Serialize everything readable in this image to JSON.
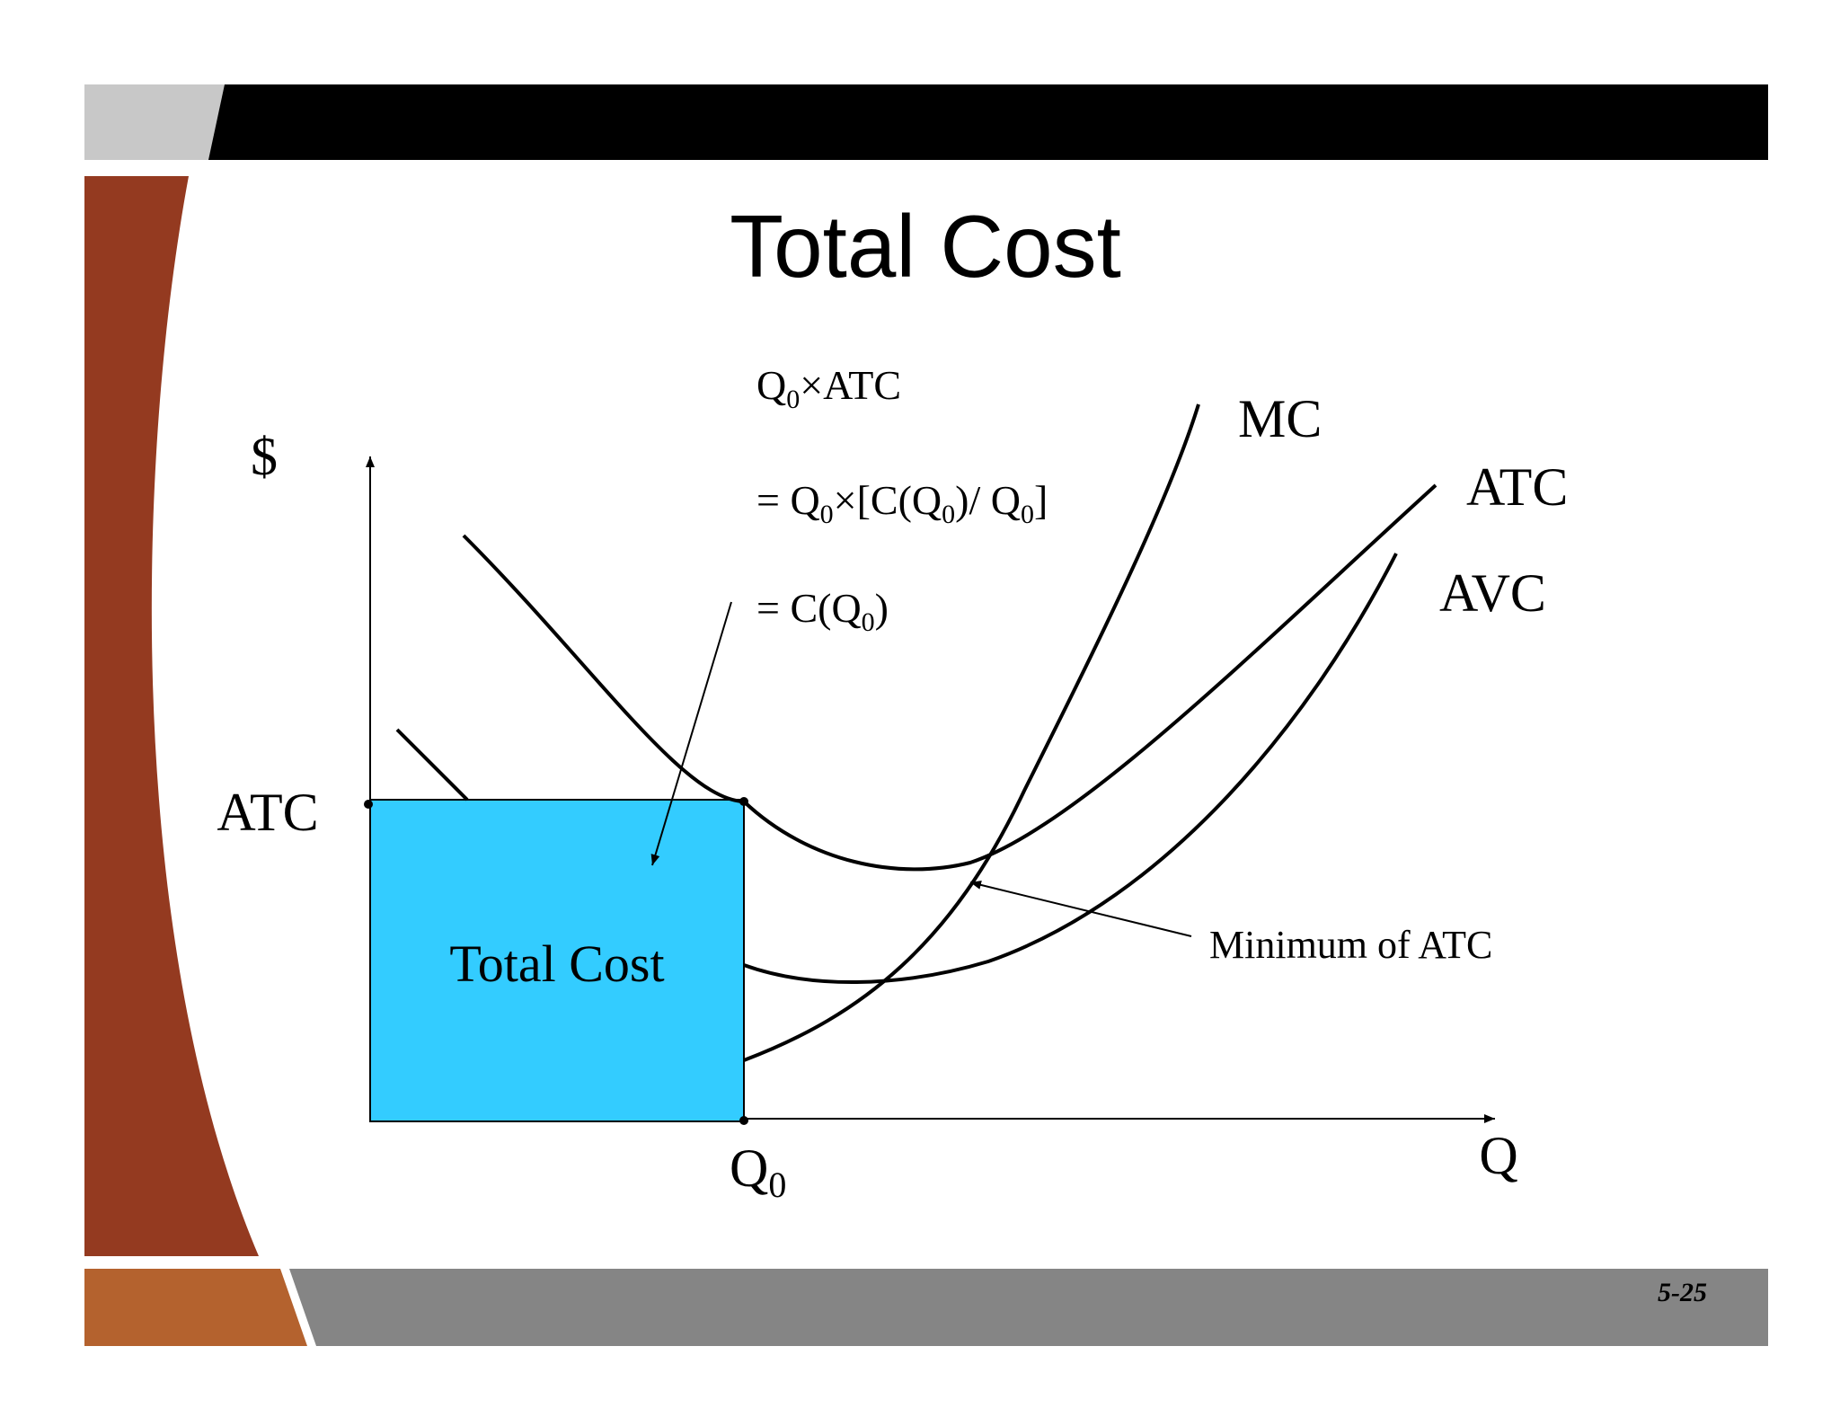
{
  "slide": {
    "title": "Total Cost",
    "page_number": "5-25"
  },
  "colors": {
    "header_bar": "#000000",
    "header_left_gray": "#c8c8c8",
    "left_band": "#943a20",
    "footer_gray": "#858585",
    "footer_orange": "#b4622e",
    "total_cost_fill": "#33ccff",
    "curve_stroke": "#000000"
  },
  "diagram": {
    "y_axis_label": "$",
    "x_axis_label": "Q",
    "q0_label_main": "Q",
    "q0_label_sub": "0",
    "atc_level_label": "ATC",
    "rect_label": "Total Cost",
    "curve_labels": {
      "mc": "MC",
      "atc": "ATC",
      "avc": "AVC"
    },
    "min_atc_annotation": "Minimum of ATC",
    "equations": {
      "line1": {
        "q": "Q",
        "sub": "0",
        "rest": "×ATC"
      },
      "line2": {
        "a": "= Q",
        "s1": "0",
        "b": "×[C(Q",
        "s2": "0",
        "c": ")/ Q",
        "s3": "0",
        "d": "]"
      },
      "line3": {
        "a": "= C(Q",
        "s1": "0",
        "b": ")"
      }
    }
  }
}
